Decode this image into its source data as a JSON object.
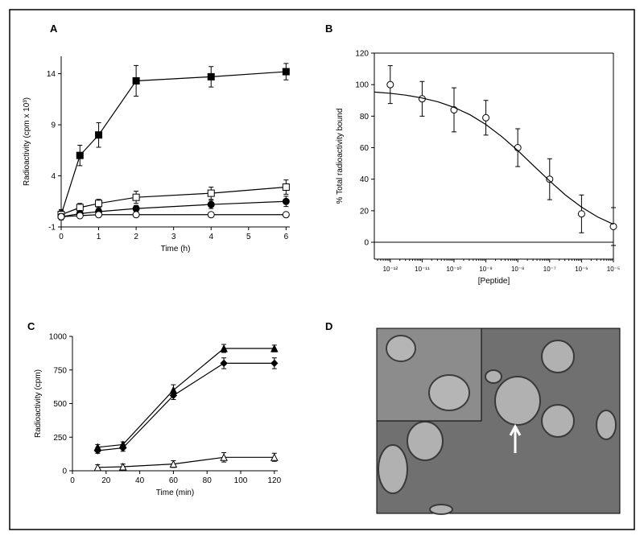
{
  "chart_data": [
    {
      "type": "line",
      "title": "A",
      "xlabel": "Time (h)",
      "ylabel": "Radioactivity (cpm x 10³)",
      "xlim": [
        0,
        6.1
      ],
      "xticks": [
        0,
        1,
        2,
        3,
        4,
        5,
        6
      ],
      "ylim": [
        -1,
        15.7
      ],
      "yticks": [
        -1,
        4,
        9,
        14
      ],
      "frame": false,
      "series": [
        {
          "marker": "square",
          "filled": true,
          "color": "#000000",
          "x": [
            0,
            0.5,
            1,
            2,
            4,
            6
          ],
          "values": [
            0.2,
            6,
            8,
            13.3,
            13.7,
            14.2
          ],
          "errors": [
            0.5,
            1,
            1.2,
            1.5,
            1,
            0.8
          ]
        },
        {
          "marker": "square",
          "filled": false,
          "color": "#000000",
          "x": [
            0,
            0.5,
            1,
            2,
            4,
            6
          ],
          "values": [
            0.2,
            0.9,
            1.3,
            1.9,
            2.3,
            2.9
          ],
          "errors": [
            0.4,
            0.4,
            0.4,
            0.6,
            0.6,
            0.7
          ]
        },
        {
          "marker": "circle",
          "filled": true,
          "color": "#000000",
          "x": [
            0,
            0.5,
            1,
            2,
            4,
            6
          ],
          "values": [
            0,
            0.3,
            0.5,
            0.8,
            1.2,
            1.5
          ],
          "errors": [
            0.3,
            0.3,
            0.3,
            0.3,
            0.4,
            0.5
          ]
        },
        {
          "marker": "circle",
          "filled": false,
          "color": "#000000",
          "x": [
            0,
            0.5,
            1,
            2,
            4,
            6
          ],
          "values": [
            0,
            0.1,
            0.2,
            0.2,
            0.2,
            0.2
          ],
          "errors": [
            0.2,
            0.2,
            0.2,
            0.2,
            0.2,
            0.2
          ]
        }
      ]
    },
    {
      "type": "scatter",
      "title": "B",
      "xlabel": "[Peptide]",
      "ylabel": "% Total radioactivity bound",
      "xscale": "log",
      "xlim": [
        3.162e-13,
        1e-05
      ],
      "xticks": [
        {
          "value": 1e-12,
          "label": "10⁻¹²"
        },
        {
          "value": 1e-11,
          "label": "10⁻¹¹"
        },
        {
          "value": 1e-10,
          "label": "10⁻¹⁰"
        },
        {
          "value": 1e-09,
          "label": "10⁻⁹"
        },
        {
          "value": 1e-08,
          "label": "10⁻⁸"
        },
        {
          "value": 1e-07,
          "label": "10⁻⁷"
        },
        {
          "value": 1e-06,
          "label": "10⁻⁶"
        },
        {
          "value": 1e-05,
          "label": "10⁻⁵"
        }
      ],
      "ylim": [
        -10.7,
        120
      ],
      "yticks": [
        0,
        20,
        40,
        60,
        80,
        100,
        120
      ],
      "frame": true,
      "zero_line": true,
      "series": [
        {
          "marker": "circle",
          "filled": false,
          "line": false,
          "color": "#000000",
          "x": [
            1e-12,
            1e-11,
            1e-10,
            1e-09,
            1e-08,
            1e-07,
            1e-06,
            1e-05
          ],
          "values": [
            100,
            91,
            84,
            79,
            60,
            40,
            18,
            10
          ],
          "errors": [
            12,
            11,
            14,
            11,
            12,
            13,
            12,
            12
          ]
        },
        {
          "marker": "none",
          "line": true,
          "color": "#000000",
          "x": [
            3.162e-13,
            1e-12,
            3.162e-12,
            1e-11,
            3.162e-11,
            1e-10,
            3.162e-10,
            1e-09,
            3.162e-09,
            1e-08,
            3.162e-08,
            1e-07,
            3.162e-07,
            1e-06,
            3.162e-06,
            1e-05
          ],
          "values": [
            95.3,
            94.5,
            93.3,
            91.5,
            89.1,
            85.6,
            80.9,
            74.7,
            67.0,
            58.2,
            48.5,
            38.9,
            29.9,
            22.3,
            16.1,
            11.4
          ]
        }
      ]
    },
    {
      "type": "line",
      "title": "C",
      "xlabel": "Time (min)",
      "ylabel": "Radioactivity (cpm)",
      "xlim": [
        0,
        122
      ],
      "xticks": [
        0,
        20,
        40,
        60,
        80,
        100,
        120
      ],
      "ylim": [
        0,
        1000
      ],
      "yticks": [
        0,
        250,
        500,
        750,
        1000
      ],
      "frame": false,
      "series": [
        {
          "marker": "triangle",
          "filled": true,
          "color": "#000000",
          "x": [
            15,
            30,
            60,
            90,
            120
          ],
          "values": [
            175,
            195,
            600,
            910,
            910
          ],
          "errors": [
            20,
            20,
            40,
            30,
            25
          ]
        },
        {
          "marker": "diamond",
          "filled": true,
          "color": "#000000",
          "x": [
            15,
            30,
            60,
            90,
            120
          ],
          "values": [
            150,
            170,
            560,
            800,
            800
          ],
          "errors": [
            20,
            25,
            30,
            40,
            40
          ]
        },
        {
          "marker": "triangle",
          "filled": false,
          "color": "#000000",
          "x": [
            15,
            30,
            60,
            90,
            120
          ],
          "values": [
            25,
            30,
            50,
            100,
            100
          ],
          "errors": [
            20,
            20,
            25,
            35,
            30
          ]
        }
      ]
    },
    {
      "type": "image",
      "title": "D"
    }
  ]
}
